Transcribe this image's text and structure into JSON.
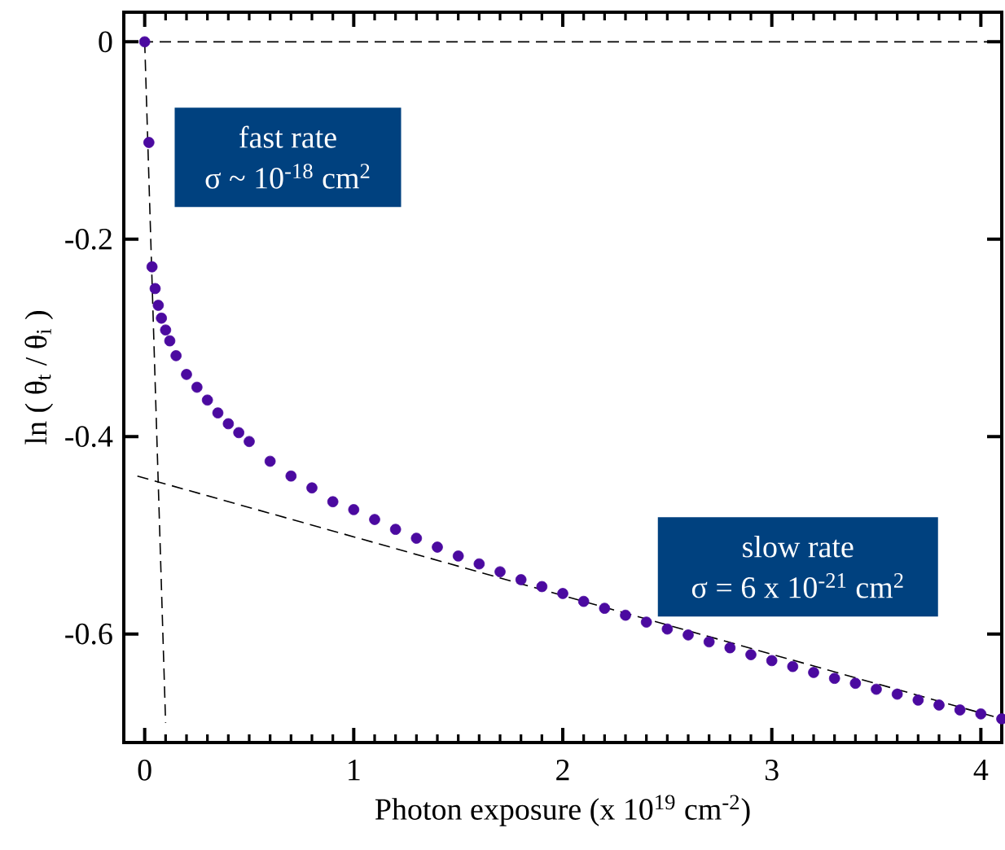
{
  "chart_data": {
    "type": "scatter",
    "xlabel": "Photon exposure (x 10$^{19}$ cm$^{-2}$)",
    "ylabel": "ln ( θ$_{t}$ / θ$_{i}$ )",
    "annotations": [
      "fast rate",
      "σ ~ 10$^{-18}$ cm$^{2}$",
      "slow rate",
      "σ = 6 x 10$^{-21}$ cm$^{2}$"
    ],
    "xlim": [
      -0.1,
      4.1
    ],
    "ylim": [
      -0.71,
      0.03
    ],
    "xticks": [
      0,
      1,
      2,
      3,
      4,
      {
        "value": 0.1,
        "label": null
      },
      {
        "value": 0.2,
        "label": null
      },
      {
        "value": 0.3,
        "label": null
      },
      {
        "value": 0.4,
        "label": null
      },
      {
        "value": 0.5,
        "label": null
      },
      {
        "value": 0.6,
        "label": null
      },
      {
        "value": 0.7,
        "label": null
      },
      {
        "value": 0.8,
        "label": null
      },
      {
        "value": 0.9,
        "label": null
      },
      {
        "value": 1.1,
        "label": null
      },
      {
        "value": 1.2,
        "label": null
      },
      {
        "value": 1.3,
        "label": null
      },
      {
        "value": 1.4,
        "label": null
      },
      {
        "value": 1.5,
        "label": null
      },
      {
        "value": 1.6,
        "label": null
      },
      {
        "value": 1.7,
        "label": null
      },
      {
        "value": 1.8,
        "label": null
      },
      {
        "value": 1.9,
        "label": null
      },
      {
        "value": 2.1,
        "label": null
      },
      {
        "value": 2.2,
        "label": null
      },
      {
        "value": 2.3,
        "label": null
      },
      {
        "value": 2.4,
        "label": null
      },
      {
        "value": 2.5,
        "label": null
      },
      {
        "value": 2.6,
        "label": null
      },
      {
        "value": 2.7,
        "label": null
      },
      {
        "value": 2.8,
        "label": null
      },
      {
        "value": 2.9,
        "label": null
      },
      {
        "value": 3.1,
        "label": null
      },
      {
        "value": 3.2,
        "label": null
      },
      {
        "value": 3.3,
        "label": null
      },
      {
        "value": 3.4,
        "label": null
      },
      {
        "value": 3.5,
        "label": null
      },
      {
        "value": 3.6,
        "label": null
      },
      {
        "value": 3.7,
        "label": null
      },
      {
        "value": 3.8,
        "label": null
      },
      {
        "value": 3.9,
        "label": null
      },
      {
        "value": 4.1,
        "label": null
      }
    ],
    "yticks": [
      0,
      -0.2,
      -0.4,
      -0.6
    ],
    "grid": false,
    "ref_lines": [
      {
        "axis": "y",
        "value": 0,
        "color": "#000000",
        "line_style": "dashed"
      }
    ],
    "series": [
      {
        "color": "#4b0aa0",
        "marker": "circle",
        "x": [
          0,
          0.02,
          0.035,
          0.05,
          0.065,
          0.08,
          0.1,
          0.12,
          0.15,
          0.2,
          0.25,
          0.3,
          0.35,
          0.4,
          0.45,
          0.5,
          0.6,
          0.7,
          0.8,
          0.9,
          1.0,
          1.1,
          1.2,
          1.3,
          1.4,
          1.5,
          1.6,
          1.7,
          1.8,
          1.9,
          2.0,
          2.1,
          2.2,
          2.3,
          2.4,
          2.5,
          2.6,
          2.7,
          2.8,
          2.9,
          3.0,
          3.1,
          3.2,
          3.3,
          3.4,
          3.5,
          3.6,
          3.7,
          3.8,
          3.9,
          4.0,
          4.1
        ],
        "values": [
          0,
          -0.102,
          -0.228,
          -0.25,
          -0.267,
          -0.28,
          -0.292,
          -0.303,
          -0.318,
          -0.337,
          -0.35,
          -0.363,
          -0.376,
          -0.387,
          -0.396,
          -0.405,
          -0.425,
          -0.44,
          -0.452,
          -0.466,
          -0.474,
          -0.484,
          -0.494,
          -0.503,
          -0.512,
          -0.521,
          -0.529,
          -0.537,
          -0.545,
          -0.552,
          -0.559,
          -0.567,
          -0.574,
          -0.581,
          -0.588,
          -0.595,
          -0.601,
          -0.608,
          -0.614,
          -0.621,
          -0.627,
          -0.633,
          -0.639,
          -0.645,
          -0.65,
          -0.656,
          -0.661,
          -0.667,
          -0.672,
          -0.677,
          -0.681,
          -0.686
        ]
      },
      {
        "type": "line",
        "color": "#000000",
        "line_style": "dashed",
        "x": [
          0,
          0.1
        ],
        "values": [
          0,
          -0.69
        ]
      },
      {
        "type": "line",
        "color": "#000000",
        "line_style": "dashed",
        "x": [
          -0.035,
          4.1
        ],
        "values": [
          -0.44,
          -0.686
        ]
      }
    ]
  }
}
